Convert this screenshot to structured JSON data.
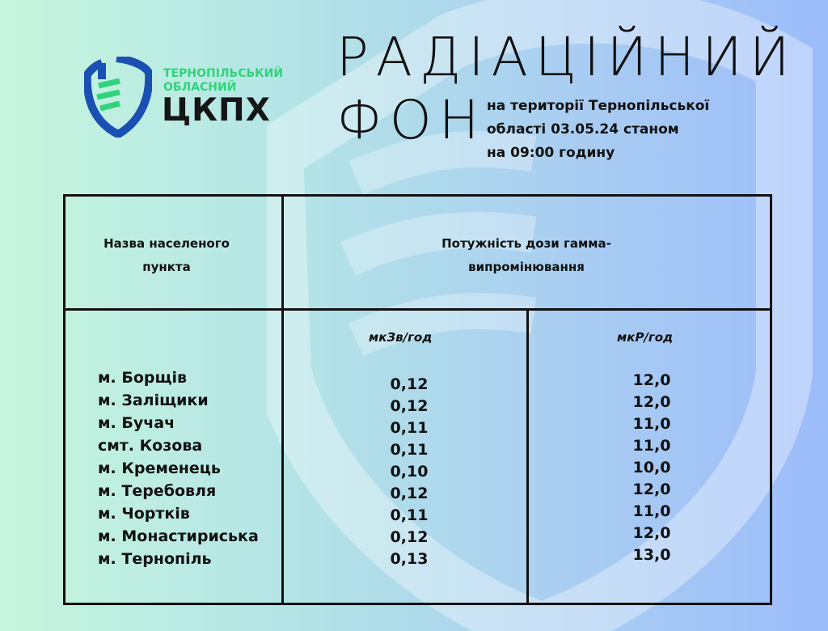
{
  "logo": {
    "line1": "ТЕРНОПІЛЬСЬКИЙ",
    "line2": "ОБЛАСНИЙ",
    "line3": "ЦКПХ"
  },
  "title": {
    "line1": "РАДІАЦІЙНИЙ",
    "line2": "ФОН"
  },
  "subtitle": [
    "на території Тернопільської",
    "області 03.05.24 станом",
    "на 09:00 годину"
  ],
  "colors": {
    "logo_green": "#2fd37b",
    "logo_blue": "#1a4fb4",
    "bg_left": "#c6f6dd",
    "bg_right": "#9cbcfa"
  },
  "table": {
    "header_name": "Назва населеного пункта",
    "header_dose": "Потужність дози гамма-випромінювання",
    "unit1": "мкЗв/год",
    "unit2": "мкР/год",
    "rows": [
      {
        "name": "м. Борщів",
        "usv": "0,12",
        "ur": "12,0"
      },
      {
        "name": "м. Заліщики",
        "usv": "0,12",
        "ur": "12,0"
      },
      {
        "name": "м. Бучач",
        "usv": "0,11",
        "ur": "11,0"
      },
      {
        "name": "смт. Козова",
        "usv": "0,11",
        "ur": "11,0"
      },
      {
        "name": "м. Кременець",
        "usv": "0,10",
        "ur": "10,0"
      },
      {
        "name": "м. Теребовля",
        "usv": "0,12",
        "ur": "12,0"
      },
      {
        "name": "м. Чортків",
        "usv": "0,11",
        "ur": "11,0"
      },
      {
        "name": "м. Монастириська",
        "usv": "0,12",
        "ur": "12,0"
      },
      {
        "name": "м. Тернопіль",
        "usv": "0,13",
        "ur": "13,0"
      }
    ]
  }
}
